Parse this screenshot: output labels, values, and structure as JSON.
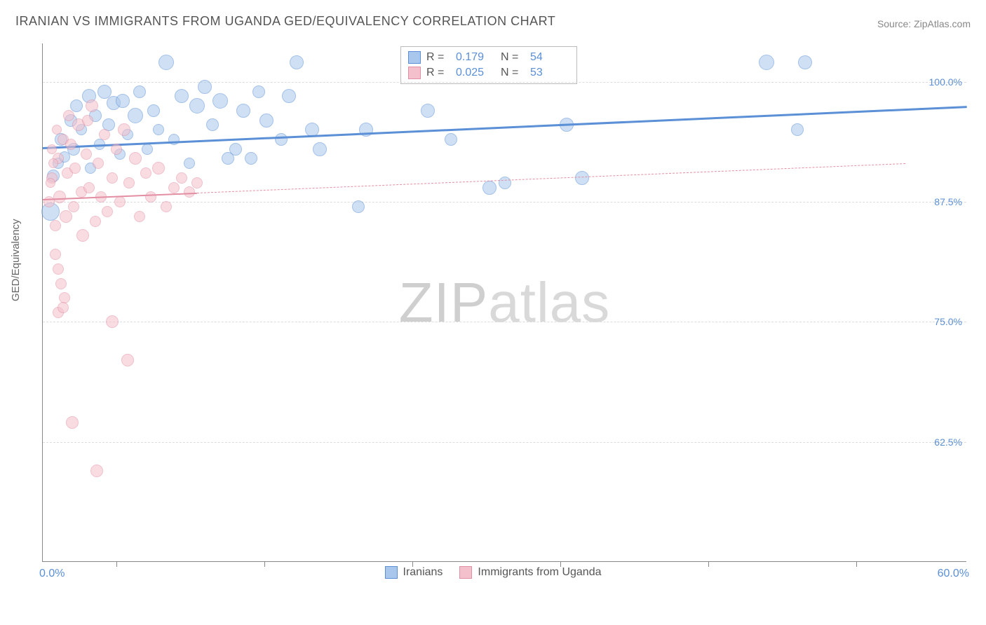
{
  "title": "IRANIAN VS IMMIGRANTS FROM UGANDA GED/EQUIVALENCY CORRELATION CHART",
  "source": "Source: ZipAtlas.com",
  "watermark": {
    "part1": "ZIP",
    "part2": "atlas"
  },
  "axis": {
    "y_title": "GED/Equivalency",
    "x_min_label": "0.0%",
    "x_max_label": "60.0%",
    "y_ticks": [
      {
        "value": 100.0,
        "label": "100.0%"
      },
      {
        "value": 87.5,
        "label": "87.5%"
      },
      {
        "value": 75.0,
        "label": "75.0%"
      },
      {
        "value": 62.5,
        "label": "62.5%"
      }
    ],
    "x_tick_positions_pct": [
      8,
      24,
      40,
      56,
      72,
      88
    ],
    "xlim": [
      0,
      60
    ],
    "ylim": [
      50,
      104
    ]
  },
  "styling": {
    "background_color": "#ffffff",
    "grid_color": "#dcdcdc",
    "axis_color": "#888888",
    "label_color": "#5b8fd6",
    "title_color": "#555555",
    "title_fontsize": 18,
    "label_fontsize": 16,
    "axis_title_fontsize": 15,
    "point_radius_min": 7,
    "point_radius_max": 13,
    "point_opacity": 0.55
  },
  "series": [
    {
      "key": "iranians",
      "name": "Iranians",
      "fill": "#a9c7ec",
      "stroke": "#5b8fd6",
      "trend": {
        "y_at_xmin": 93.2,
        "y_at_xmax": 97.5,
        "width": 3,
        "dash": "solid",
        "x_end": 60
      },
      "R_label": "R =",
      "R_value": "0.179",
      "N_label": "N =",
      "N_value": "54",
      "points": [
        {
          "x": 0.5,
          "y": 86.5,
          "r": 13
        },
        {
          "x": 0.7,
          "y": 90.2,
          "r": 9
        },
        {
          "x": 1.0,
          "y": 91.5,
          "r": 8
        },
        {
          "x": 1.2,
          "y": 94.0,
          "r": 9
        },
        {
          "x": 1.4,
          "y": 92.2,
          "r": 8
        },
        {
          "x": 1.8,
          "y": 96.0,
          "r": 9
        },
        {
          "x": 2.0,
          "y": 93.0,
          "r": 9
        },
        {
          "x": 2.2,
          "y": 97.5,
          "r": 9
        },
        {
          "x": 2.5,
          "y": 95.0,
          "r": 8
        },
        {
          "x": 3.0,
          "y": 98.5,
          "r": 10
        },
        {
          "x": 3.1,
          "y": 91.0,
          "r": 8
        },
        {
          "x": 3.4,
          "y": 96.5,
          "r": 9
        },
        {
          "x": 3.7,
          "y": 93.5,
          "r": 8
        },
        {
          "x": 4.0,
          "y": 99.0,
          "r": 10
        },
        {
          "x": 4.3,
          "y": 95.5,
          "r": 9
        },
        {
          "x": 4.6,
          "y": 97.8,
          "r": 10
        },
        {
          "x": 5.0,
          "y": 92.5,
          "r": 8
        },
        {
          "x": 5.2,
          "y": 98.0,
          "r": 10
        },
        {
          "x": 5.5,
          "y": 94.5,
          "r": 8
        },
        {
          "x": 6.0,
          "y": 96.5,
          "r": 11
        },
        {
          "x": 6.3,
          "y": 99.0,
          "r": 9
        },
        {
          "x": 6.8,
          "y": 93.0,
          "r": 8
        },
        {
          "x": 7.2,
          "y": 97.0,
          "r": 9
        },
        {
          "x": 7.5,
          "y": 95.0,
          "r": 8
        },
        {
          "x": 8.0,
          "y": 102.0,
          "r": 11
        },
        {
          "x": 8.5,
          "y": 94.0,
          "r": 8
        },
        {
          "x": 9.0,
          "y": 98.5,
          "r": 10
        },
        {
          "x": 9.5,
          "y": 91.5,
          "r": 8
        },
        {
          "x": 10.0,
          "y": 97.5,
          "r": 11
        },
        {
          "x": 10.5,
          "y": 99.5,
          "r": 10
        },
        {
          "x": 11.0,
          "y": 95.5,
          "r": 9
        },
        {
          "x": 11.5,
          "y": 98.0,
          "r": 11
        },
        {
          "x": 12.5,
          "y": 93.0,
          "r": 9
        },
        {
          "x": 13.0,
          "y": 97.0,
          "r": 10
        },
        {
          "x": 13.5,
          "y": 92.0,
          "r": 9
        },
        {
          "x": 14.5,
          "y": 96.0,
          "r": 10
        },
        {
          "x": 15.5,
          "y": 94.0,
          "r": 9
        },
        {
          "x": 16.5,
          "y": 102.0,
          "r": 10
        },
        {
          "x": 17.5,
          "y": 95.0,
          "r": 10
        },
        {
          "x": 16.0,
          "y": 98.5,
          "r": 10
        },
        {
          "x": 18.0,
          "y": 93.0,
          "r": 10
        },
        {
          "x": 12.0,
          "y": 92.0,
          "r": 9
        },
        {
          "x": 14.0,
          "y": 99.0,
          "r": 9
        },
        {
          "x": 20.5,
          "y": 87.0,
          "r": 9
        },
        {
          "x": 21.0,
          "y": 95.0,
          "r": 10
        },
        {
          "x": 25.0,
          "y": 97.0,
          "r": 10
        },
        {
          "x": 26.5,
          "y": 94.0,
          "r": 9
        },
        {
          "x": 29.0,
          "y": 89.0,
          "r": 10
        },
        {
          "x": 30.0,
          "y": 89.5,
          "r": 9
        },
        {
          "x": 34.0,
          "y": 95.5,
          "r": 10
        },
        {
          "x": 35.0,
          "y": 90.0,
          "r": 10
        },
        {
          "x": 47.0,
          "y": 102.0,
          "r": 11
        },
        {
          "x": 49.5,
          "y": 102.0,
          "r": 10
        },
        {
          "x": 49.0,
          "y": 95.0,
          "r": 9
        }
      ]
    },
    {
      "key": "uganda",
      "name": "Immigrants from Uganda",
      "fill": "#f4c0cb",
      "stroke": "#e38fa3",
      "trend": {
        "y_at_xmin": 87.8,
        "y_at_xmax": 91.8,
        "width": 2,
        "dash": "dashed",
        "solid_until_x": 10,
        "x_end": 56
      },
      "R_label": "R =",
      "R_value": "0.025",
      "N_label": "N =",
      "N_value": "53",
      "points": [
        {
          "x": 0.4,
          "y": 87.5,
          "r": 8
        },
        {
          "x": 0.6,
          "y": 90.0,
          "r": 8
        },
        {
          "x": 0.8,
          "y": 85.0,
          "r": 8
        },
        {
          "x": 1.0,
          "y": 92.0,
          "r": 8
        },
        {
          "x": 1.1,
          "y": 88.0,
          "r": 9
        },
        {
          "x": 1.3,
          "y": 94.0,
          "r": 8
        },
        {
          "x": 1.5,
          "y": 86.0,
          "r": 9
        },
        {
          "x": 1.6,
          "y": 90.5,
          "r": 8
        },
        {
          "x": 1.8,
          "y": 93.5,
          "r": 8
        },
        {
          "x": 2.0,
          "y": 87.0,
          "r": 8
        },
        {
          "x": 2.1,
          "y": 91.0,
          "r": 8
        },
        {
          "x": 2.3,
          "y": 95.5,
          "r": 9
        },
        {
          "x": 2.5,
          "y": 88.5,
          "r": 8
        },
        {
          "x": 2.6,
          "y": 84.0,
          "r": 9
        },
        {
          "x": 2.8,
          "y": 92.5,
          "r": 8
        },
        {
          "x": 3.0,
          "y": 89.0,
          "r": 8
        },
        {
          "x": 3.2,
          "y": 97.5,
          "r": 9
        },
        {
          "x": 3.4,
          "y": 85.5,
          "r": 8
        },
        {
          "x": 3.6,
          "y": 91.5,
          "r": 8
        },
        {
          "x": 3.8,
          "y": 88.0,
          "r": 8
        },
        {
          "x": 4.0,
          "y": 94.5,
          "r": 8
        },
        {
          "x": 4.2,
          "y": 86.5,
          "r": 8
        },
        {
          "x": 4.5,
          "y": 90.0,
          "r": 8
        },
        {
          "x": 4.8,
          "y": 93.0,
          "r": 8
        },
        {
          "x": 5.0,
          "y": 87.5,
          "r": 8
        },
        {
          "x": 5.3,
          "y": 95.0,
          "r": 9
        },
        {
          "x": 5.6,
          "y": 89.5,
          "r": 8
        },
        {
          "x": 6.0,
          "y": 92.0,
          "r": 9
        },
        {
          "x": 6.3,
          "y": 86.0,
          "r": 8
        },
        {
          "x": 6.7,
          "y": 90.5,
          "r": 8
        },
        {
          "x": 7.0,
          "y": 88.0,
          "r": 8
        },
        {
          "x": 7.5,
          "y": 91.0,
          "r": 9
        },
        {
          "x": 8.0,
          "y": 87.0,
          "r": 8
        },
        {
          "x": 8.5,
          "y": 89.0,
          "r": 8
        },
        {
          "x": 9.0,
          "y": 90.0,
          "r": 8
        },
        {
          "x": 9.5,
          "y": 88.5,
          "r": 8
        },
        {
          "x": 10.0,
          "y": 89.5,
          "r": 8
        },
        {
          "x": 1.0,
          "y": 80.5,
          "r": 8
        },
        {
          "x": 1.2,
          "y": 79.0,
          "r": 8
        },
        {
          "x": 0.8,
          "y": 82.0,
          "r": 8
        },
        {
          "x": 1.4,
          "y": 77.5,
          "r": 8
        },
        {
          "x": 1.0,
          "y": 76.0,
          "r": 8
        },
        {
          "x": 1.3,
          "y": 76.5,
          "r": 8
        },
        {
          "x": 4.5,
          "y": 75.0,
          "r": 9
        },
        {
          "x": 5.5,
          "y": 71.0,
          "r": 9
        },
        {
          "x": 1.9,
          "y": 64.5,
          "r": 9
        },
        {
          "x": 3.5,
          "y": 59.5,
          "r": 9
        },
        {
          "x": 0.6,
          "y": 93.0,
          "r": 7
        },
        {
          "x": 0.9,
          "y": 95.0,
          "r": 7
        },
        {
          "x": 1.7,
          "y": 96.5,
          "r": 8
        },
        {
          "x": 2.9,
          "y": 96.0,
          "r": 8
        },
        {
          "x": 0.5,
          "y": 89.5,
          "r": 7
        },
        {
          "x": 0.7,
          "y": 91.5,
          "r": 7
        }
      ]
    }
  ],
  "legend_bottom": [
    {
      "series": "iranians"
    },
    {
      "series": "uganda"
    }
  ]
}
